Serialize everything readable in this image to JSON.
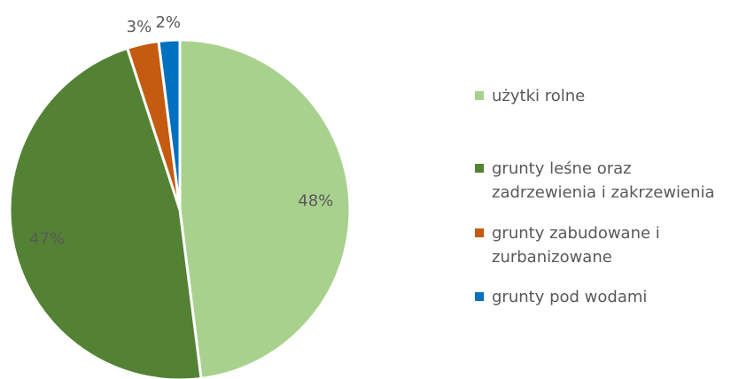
{
  "chart_data": {
    "type": "pie",
    "categories": [
      "użytki rolne",
      "grunty leśne oraz zadrzewienia i zakrzewienia",
      "grunty zabudowane i zurbanizowane",
      "grunty pod wodami"
    ],
    "values": [
      48,
      47,
      3,
      2
    ],
    "value_labels": [
      "48%",
      "47%",
      "3%",
      "2%"
    ],
    "colors": [
      "#a9d18e",
      "#548235",
      "#c55a11",
      "#0070c0"
    ],
    "legend": "right"
  }
}
